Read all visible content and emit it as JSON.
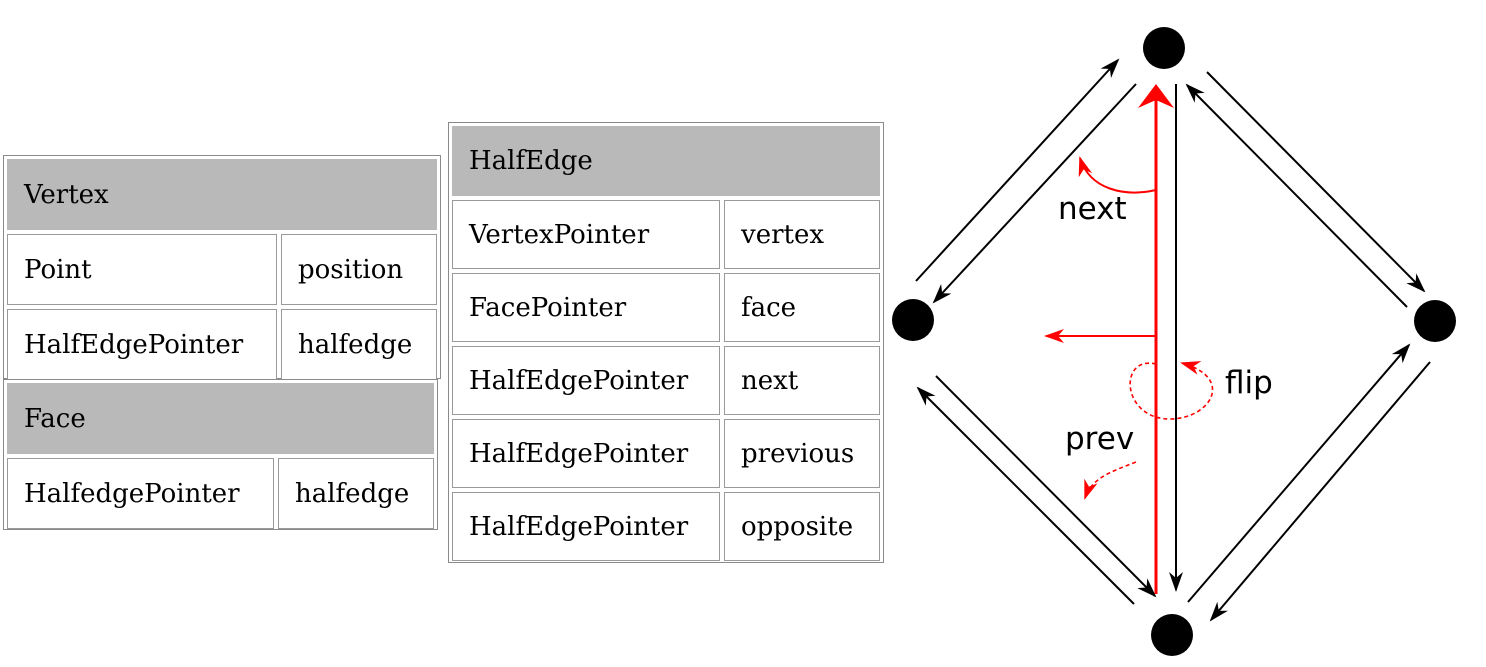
{
  "vertex_table": {
    "title": "Vertex",
    "rows": [
      {
        "type": "Point",
        "name": "position"
      },
      {
        "type": "HalfEdgePointer",
        "name": "halfedge"
      }
    ]
  },
  "face_table": {
    "title": "Face",
    "rows": [
      {
        "type": "HalfedgePointer",
        "name": "halfedge"
      }
    ]
  },
  "halfedge_table": {
    "title": "HalfEdge",
    "rows": [
      {
        "type": "VertexPointer",
        "name": "vertex"
      },
      {
        "type": "FacePointer",
        "name": "face"
      },
      {
        "type": "HalfEdgePointer",
        "name": "next"
      },
      {
        "type": "HalfEdgePointer",
        "name": "previous"
      },
      {
        "type": "HalfEdgePointer",
        "name": "opposite"
      }
    ]
  },
  "diagram": {
    "labels": {
      "next": "next",
      "flip": "flip",
      "prev": "prev"
    },
    "colors": {
      "edge": "#000000",
      "highlight": "#ff0000",
      "vertex": "#000000"
    }
  }
}
